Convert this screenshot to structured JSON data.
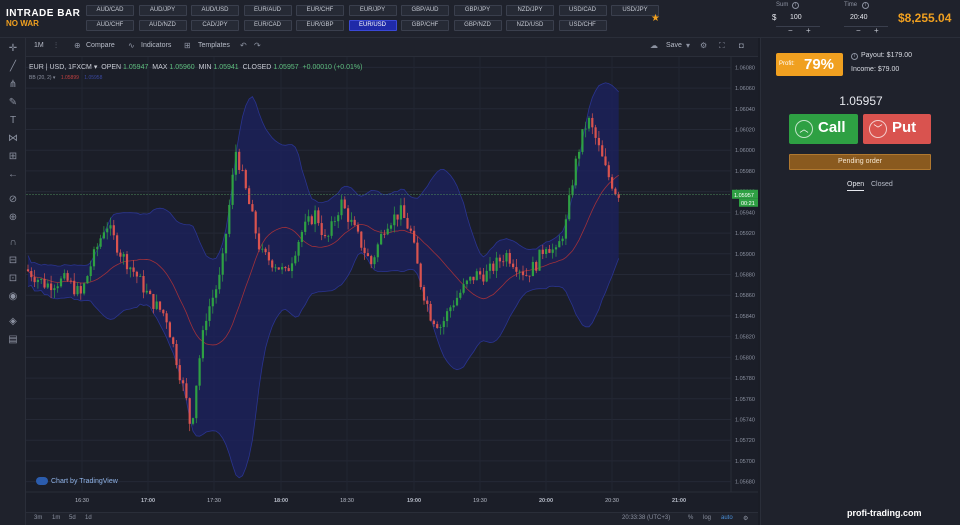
{
  "header": {
    "logo_main": "INTRADE BAR",
    "logo_sub": "NO WAR",
    "pairs_row1": [
      "AUD/CAD",
      "AUD/JPY",
      "AUD/USD",
      "EUR/AUD",
      "EUR/CHF",
      "EUR/JPY",
      "GBP/AUD",
      "GBP/JPY",
      "NZD/JPY",
      "USD/CAD",
      "USD/JPY"
    ],
    "pairs_row2": [
      "AUD/CHF",
      "AUD/NZD",
      "CAD/JPY",
      "EUR/CAD",
      "EUR/GBP",
      "EUR/USD",
      "GBP/CHF",
      "GBP/NZD",
      "NZD/USD",
      "USD/CHF"
    ],
    "active_pair": "EUR/USD",
    "sum_label": "Sum",
    "sum_currency": "$",
    "sum_value": "100",
    "time_label": "Time",
    "time_value": "20:40",
    "balance": "$8,255.04",
    "stepper_minus": "−",
    "stepper_plus": "+"
  },
  "chart_toolbar": {
    "interval": "1M",
    "compare": "Compare",
    "indicators": "Indicators",
    "templates": "Templates",
    "save": "Save"
  },
  "legend": {
    "symbol": "EUR | USD, 1FXCM",
    "open_label": "OPEN",
    "open": "1.05947",
    "max_label": "MAX",
    "max": "1.05960",
    "min_label": "MIN",
    "min": "1.05941",
    "closed_label": "CLOSED",
    "closed": "1.05957",
    "change": "+0.00010 (+0.01%)",
    "bb": "BB (20, 2)",
    "bb_basis": "1.05899",
    "bb_upper": "1.05958"
  },
  "chart_data": {
    "type": "candlestick",
    "y_ticks": [
      "1.06080",
      "1.06060",
      "1.06040",
      "1.06020",
      "1.06000",
      "1.05980",
      "1.05960",
      "1.05940",
      "1.05920",
      "1.05900",
      "1.05880",
      "1.05860",
      "1.05840",
      "1.05820",
      "1.05800",
      "1.05780",
      "1.05760",
      "1.05740",
      "1.05720",
      "1.05700",
      "1.05680"
    ],
    "x_ticks": [
      "16:30",
      "17:00",
      "17:30",
      "18:00",
      "18:30",
      "19:00",
      "19:30",
      "20:00",
      "20:30",
      "21:00"
    ],
    "ylim": [
      1.0567,
      1.0609
    ],
    "current_price": "1.05957",
    "countdown": "00:21",
    "colors": {
      "up": "#2ea043",
      "down": "#d9534f",
      "bb_band": "#1c2260",
      "bb_mid": "#a0303a"
    }
  },
  "branding": {
    "tradingview": "Chart by TradingView"
  },
  "bottom_bar": {
    "ranges": [
      "3m",
      "1m",
      "5d",
      "1d"
    ],
    "clock": "20:33:38 (UTC+3)",
    "percent": "%",
    "log": "log",
    "auto": "auto"
  },
  "right_panel": {
    "profit_label": "Profit:",
    "profit_value": "79%",
    "payout": "Payout: $179.00",
    "income": "Income: $79.00",
    "current_price": "1.05957",
    "call_label": "Call",
    "put_label": "Put",
    "pending_label": "Pending order",
    "tab_open": "Open",
    "tab_closed": "Closed"
  },
  "watermark": "profi-trading.com"
}
